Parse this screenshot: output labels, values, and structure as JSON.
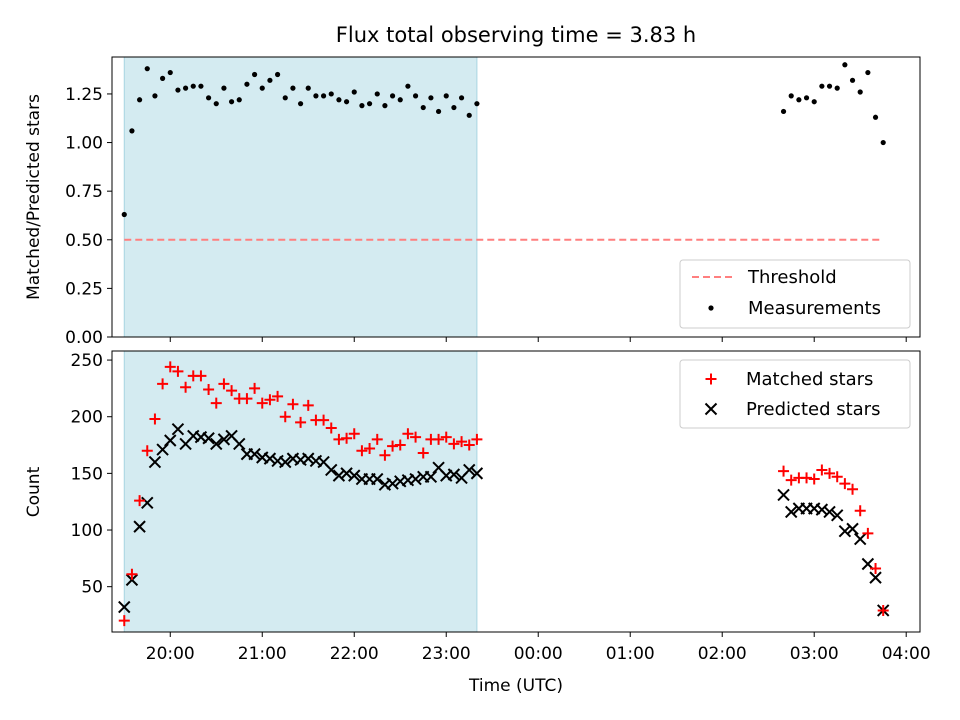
{
  "chart_data": {
    "title": "Flux total observing time = 3.83 h",
    "type": "scatter",
    "xlabel": "Time (UTC)",
    "x_ticks": [
      "20:00",
      "21:00",
      "22:00",
      "23:00",
      "00:00",
      "01:00",
      "02:00",
      "03:00",
      "04:00"
    ],
    "x_range": [
      "19:22",
      "04:09"
    ],
    "shaded_interval": [
      "19:30",
      "23:20"
    ],
    "shade_color": "#d4ebf1",
    "top": {
      "ylabel": "Matched/Predicted stars",
      "ylim": [
        0,
        1.44
      ],
      "y_ticks": [
        "0.00",
        "0.25",
        "0.50",
        "0.75",
        "1.00",
        "1.25"
      ],
      "legend_position": "lower-right",
      "threshold": {
        "name": "Threshold",
        "value": 0.5,
        "x_start": "19:30",
        "x_end": "03:45",
        "color": "#ff7f7f"
      },
      "measurements": {
        "name": "Measurements",
        "color": "#000000",
        "points": [
          [
            "19:30",
            0.63
          ],
          [
            "19:35",
            1.06
          ],
          [
            "19:40",
            1.22
          ],
          [
            "19:45",
            1.38
          ],
          [
            "19:50",
            1.24
          ],
          [
            "19:55",
            1.33
          ],
          [
            "20:00",
            1.36
          ],
          [
            "20:05",
            1.27
          ],
          [
            "20:10",
            1.28
          ],
          [
            "20:15",
            1.29
          ],
          [
            "20:20",
            1.29
          ],
          [
            "20:25",
            1.23
          ],
          [
            "20:30",
            1.2
          ],
          [
            "20:35",
            1.28
          ],
          [
            "20:40",
            1.21
          ],
          [
            "20:45",
            1.22
          ],
          [
            "20:50",
            1.3
          ],
          [
            "20:55",
            1.35
          ],
          [
            "21:00",
            1.28
          ],
          [
            "21:05",
            1.32
          ],
          [
            "21:10",
            1.35
          ],
          [
            "21:15",
            1.23
          ],
          [
            "21:20",
            1.28
          ],
          [
            "21:25",
            1.2
          ],
          [
            "21:30",
            1.28
          ],
          [
            "21:35",
            1.24
          ],
          [
            "21:40",
            1.24
          ],
          [
            "21:45",
            1.25
          ],
          [
            "21:50",
            1.22
          ],
          [
            "21:55",
            1.21
          ],
          [
            "22:00",
            1.26
          ],
          [
            "22:05",
            1.19
          ],
          [
            "22:10",
            1.2
          ],
          [
            "22:15",
            1.25
          ],
          [
            "22:20",
            1.19
          ],
          [
            "22:25",
            1.24
          ],
          [
            "22:30",
            1.22
          ],
          [
            "22:35",
            1.29
          ],
          [
            "22:40",
            1.24
          ],
          [
            "22:45",
            1.18
          ],
          [
            "22:50",
            1.23
          ],
          [
            "22:55",
            1.16
          ],
          [
            "23:00",
            1.24
          ],
          [
            "23:05",
            1.18
          ],
          [
            "23:10",
            1.23
          ],
          [
            "23:15",
            1.14
          ],
          [
            "23:20",
            1.2
          ],
          [
            "02:40",
            1.16
          ],
          [
            "02:45",
            1.24
          ],
          [
            "02:50",
            1.22
          ],
          [
            "02:55",
            1.23
          ],
          [
            "03:00",
            1.21
          ],
          [
            "03:05",
            1.29
          ],
          [
            "03:10",
            1.29
          ],
          [
            "03:15",
            1.28
          ],
          [
            "03:20",
            1.4
          ],
          [
            "03:25",
            1.32
          ],
          [
            "03:30",
            1.26
          ],
          [
            "03:35",
            1.36
          ],
          [
            "03:40",
            1.13
          ],
          [
            "03:45",
            1.0
          ]
        ]
      }
    },
    "bottom": {
      "ylabel": "Count",
      "ylim": [
        10,
        258
      ],
      "y_ticks": [
        "50",
        "100",
        "150",
        "200",
        "250"
      ],
      "legend_position": "upper-right",
      "series": [
        {
          "name": "Matched stars",
          "marker": "+",
          "color": "#ff0000",
          "points": [
            [
              "19:30",
              20
            ],
            [
              "19:35",
              61
            ],
            [
              "19:40",
              126
            ],
            [
              "19:45",
              170
            ],
            [
              "19:50",
              198
            ],
            [
              "19:55",
              229
            ],
            [
              "20:00",
              244
            ],
            [
              "20:05",
              240
            ],
            [
              "20:10",
              226
            ],
            [
              "20:15",
              236
            ],
            [
              "20:20",
              236
            ],
            [
              "20:25",
              224
            ],
            [
              "20:30",
              212
            ],
            [
              "20:35",
              229
            ],
            [
              "20:40",
              223
            ],
            [
              "20:45",
              216
            ],
            [
              "20:50",
              216
            ],
            [
              "20:55",
              225
            ],
            [
              "21:00",
              212
            ],
            [
              "21:05",
              215
            ],
            [
              "21:10",
              218
            ],
            [
              "21:15",
              200
            ],
            [
              "21:20",
              211
            ],
            [
              "21:25",
              195
            ],
            [
              "21:30",
              210
            ],
            [
              "21:35",
              197
            ],
            [
              "21:40",
              197
            ],
            [
              "21:45",
              190
            ],
            [
              "21:50",
              180
            ],
            [
              "21:55",
              181
            ],
            [
              "22:00",
              185
            ],
            [
              "22:05",
              170
            ],
            [
              "22:10",
              172
            ],
            [
              "22:15",
              180
            ],
            [
              "22:20",
              166
            ],
            [
              "22:25",
              174
            ],
            [
              "22:30",
              175
            ],
            [
              "22:35",
              185
            ],
            [
              "22:40",
              182
            ],
            [
              "22:45",
              168
            ],
            [
              "22:50",
              180
            ],
            [
              "22:55",
              180
            ],
            [
              "23:00",
              182
            ],
            [
              "23:05",
              176
            ],
            [
              "23:10",
              178
            ],
            [
              "23:15",
              175
            ],
            [
              "23:20",
              180
            ],
            [
              "02:40",
              152
            ],
            [
              "02:45",
              144
            ],
            [
              "02:50",
              146
            ],
            [
              "02:55",
              146
            ],
            [
              "03:00",
              145
            ],
            [
              "03:05",
              153
            ],
            [
              "03:10",
              150
            ],
            [
              "03:15",
              147
            ],
            [
              "03:20",
              141
            ],
            [
              "03:25",
              136
            ],
            [
              "03:30",
              117
            ],
            [
              "03:35",
              97
            ],
            [
              "03:40",
              66
            ],
            [
              "03:45",
              29
            ]
          ]
        },
        {
          "name": "Predicted stars",
          "marker": "x",
          "color": "#000000",
          "points": [
            [
              "19:30",
              32
            ],
            [
              "19:35",
              56
            ],
            [
              "19:40",
              103
            ],
            [
              "19:45",
              124
            ],
            [
              "19:50",
              160
            ],
            [
              "19:55",
              171
            ],
            [
              "20:00",
              179
            ],
            [
              "20:05",
              189
            ],
            [
              "20:10",
              176
            ],
            [
              "20:15",
              183
            ],
            [
              "20:20",
              182
            ],
            [
              "20:25",
              181
            ],
            [
              "20:30",
              176
            ],
            [
              "20:35",
              180
            ],
            [
              "20:40",
              183
            ],
            [
              "20:45",
              176
            ],
            [
              "20:50",
              167
            ],
            [
              "20:55",
              167
            ],
            [
              "21:00",
              164
            ],
            [
              "21:05",
              163
            ],
            [
              "21:10",
              161
            ],
            [
              "21:15",
              160
            ],
            [
              "21:20",
              163
            ],
            [
              "21:25",
              162
            ],
            [
              "21:30",
              163
            ],
            [
              "21:35",
              161
            ],
            [
              "21:40",
              160
            ],
            [
              "21:45",
              153
            ],
            [
              "21:50",
              148
            ],
            [
              "21:55",
              150
            ],
            [
              "22:00",
              148
            ],
            [
              "22:05",
              145
            ],
            [
              "22:10",
              145
            ],
            [
              "22:15",
              145
            ],
            [
              "22:20",
              140
            ],
            [
              "22:25",
              141
            ],
            [
              "22:30",
              143
            ],
            [
              "22:35",
              144
            ],
            [
              "22:40",
              145
            ],
            [
              "22:45",
              147
            ],
            [
              "22:50",
              147
            ],
            [
              "22:55",
              155
            ],
            [
              "23:00",
              148
            ],
            [
              "23:05",
              149
            ],
            [
              "23:10",
              146
            ],
            [
              "23:15",
              153
            ],
            [
              "23:20",
              150
            ],
            [
              "02:40",
              131
            ],
            [
              "02:45",
              116
            ],
            [
              "02:50",
              119
            ],
            [
              "02:55",
              119
            ],
            [
              "03:00",
              119
            ],
            [
              "03:05",
              118
            ],
            [
              "03:10",
              116
            ],
            [
              "03:15",
              113
            ],
            [
              "03:20",
              99
            ],
            [
              "03:25",
              101
            ],
            [
              "03:30",
              92
            ],
            [
              "03:35",
              70
            ],
            [
              "03:40",
              58
            ],
            [
              "03:45",
              29
            ]
          ]
        }
      ]
    }
  }
}
